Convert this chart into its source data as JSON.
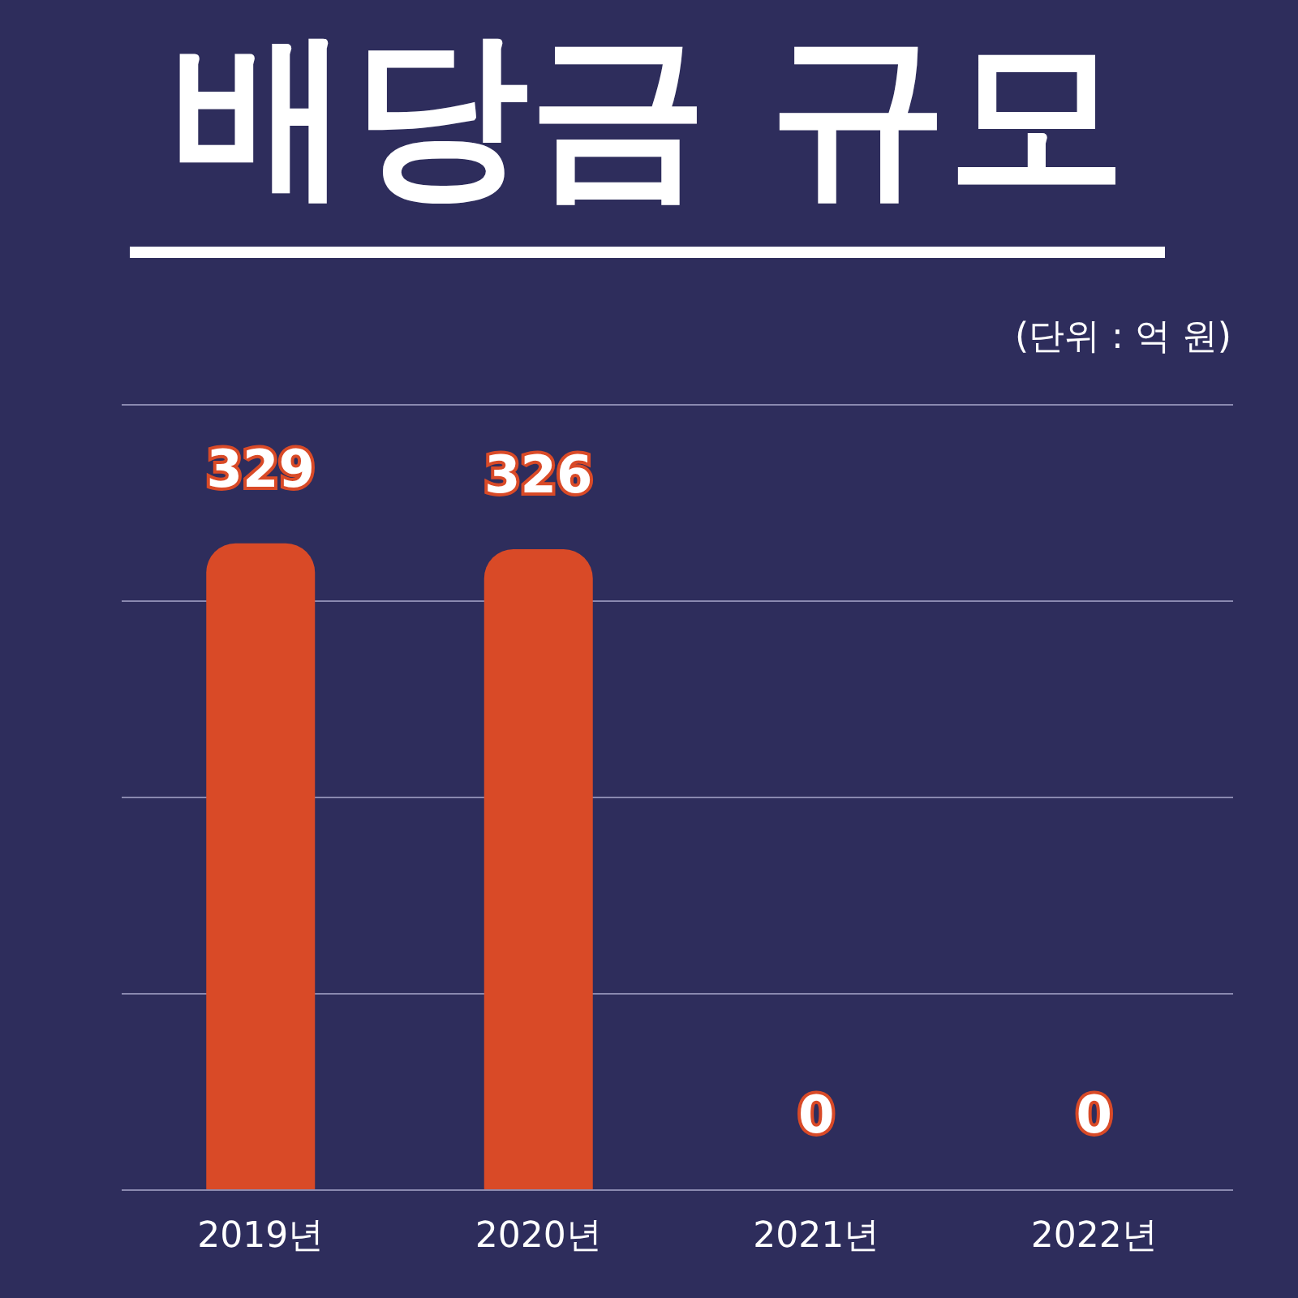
{
  "chart_data": {
    "type": "bar",
    "title": "배당금 규모",
    "subtitle": "(단위 : 억 원)",
    "categories": [
      "2019년",
      "2020년",
      "2021년",
      "2022년"
    ],
    "values": [
      329,
      326,
      0,
      0
    ],
    "color": "#d94a27",
    "ylim": [
      0,
      400
    ],
    "yticks": [
      {
        "value": 0,
        "label": null
      },
      {
        "value": 100,
        "label": null
      },
      {
        "value": 200,
        "label": null
      },
      {
        "value": 300,
        "label": null
      },
      {
        "value": 400,
        "label": null
      }
    ],
    "tick_labels": "x",
    "grid": "y",
    "data_labels": true
  }
}
